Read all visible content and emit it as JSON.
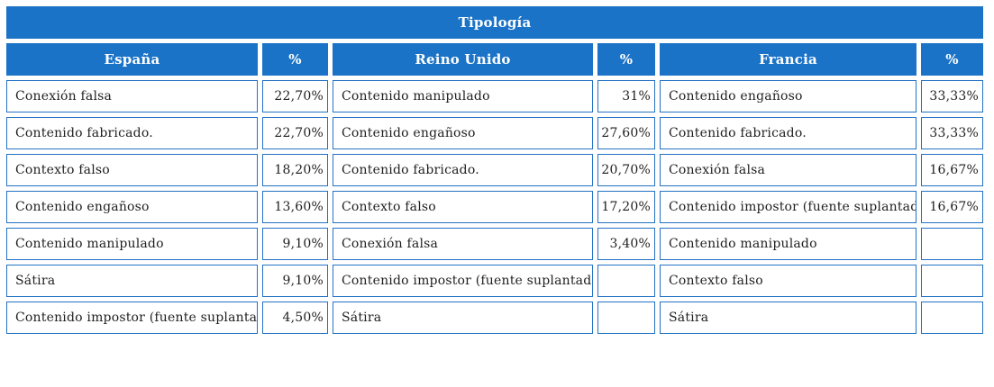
{
  "title": "Tipología",
  "colors": {
    "header_fill": "#1B73C7",
    "header_text": "#FFFFFF",
    "cell_border": "#2372C4",
    "body_text": "#1F1F1F",
    "page_background": "#FFFFFF"
  },
  "columns": [
    {
      "name": "espana",
      "label": "España"
    },
    {
      "name": "pct-espana",
      "label": "%"
    },
    {
      "name": "reino-unido",
      "label": "Reino Unido"
    },
    {
      "name": "pct-reino-unido",
      "label": "%"
    },
    {
      "name": "francia",
      "label": "Francia"
    },
    {
      "name": "pct-francia",
      "label": "%"
    }
  ],
  "rows": [
    [
      "Conexión falsa",
      "22,70%",
      "Contenido manipulado",
      "31%",
      "Contenido engañoso",
      "33,33%"
    ],
    [
      "Contenido fabricado.",
      "22,70%",
      "Contenido engañoso",
      "27,60%",
      "Contenido fabricado.",
      "33,33%"
    ],
    [
      "Contexto falso",
      "18,20%",
      "Contenido fabricado.",
      "20,70%",
      "Conexión falsa",
      "16,67%"
    ],
    [
      "Contenido engañoso",
      "13,60%",
      "Contexto falso",
      "17,20%",
      "Contenido impostor (fuente suplantada)",
      "16,67%"
    ],
    [
      "Contenido manipulado",
      "9,10%",
      "Conexión falsa",
      "3,40%",
      "Contenido manipulado",
      ""
    ],
    [
      "Sátira",
      "9,10%",
      "Contenido impostor (fuente suplantada)",
      "",
      "Contexto falso",
      ""
    ],
    [
      "Contenido impostor (fuente suplantada)",
      "4,50%",
      "Sátira",
      "",
      "Sátira",
      ""
    ]
  ]
}
